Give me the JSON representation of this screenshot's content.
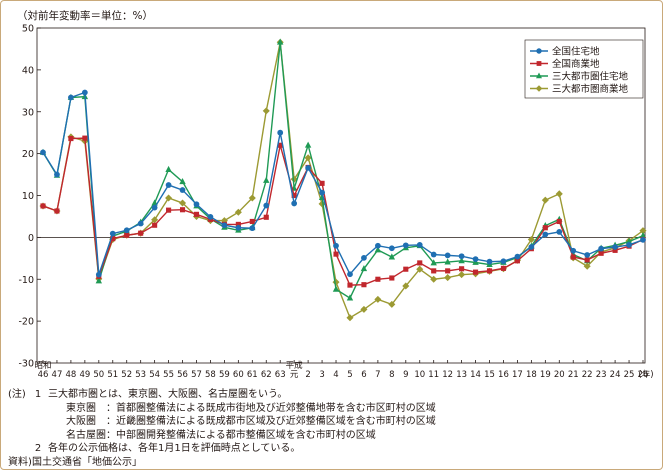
{
  "unit_label": "（対前年変動率＝単位：%）",
  "chart_data": {
    "type": "line",
    "x": [
      "昭和46",
      "47",
      "48",
      "49",
      "50",
      "51",
      "52",
      "53",
      "54",
      "55",
      "56",
      "57",
      "58",
      "59",
      "60",
      "61",
      "62",
      "63",
      "平成元",
      "2",
      "3",
      "4",
      "5",
      "6",
      "7",
      "8",
      "9",
      "10",
      "11",
      "12",
      "13",
      "14",
      "15",
      "16",
      "17",
      "18",
      "19",
      "20",
      "21",
      "22",
      "23",
      "24",
      "25",
      "26"
    ],
    "x_tick_labels": [
      "46",
      "47",
      "48",
      "49",
      "50",
      "51",
      "52",
      "53",
      "54",
      "55",
      "56",
      "57",
      "58",
      "59",
      "60",
      "61",
      "62",
      "63",
      "元",
      "2",
      "3",
      "4",
      "5",
      "6",
      "7",
      "8",
      "9",
      "10",
      "11",
      "12",
      "13",
      "14",
      "15",
      "16",
      "17",
      "18",
      "19",
      "20",
      "21",
      "22",
      "23",
      "24",
      "25",
      "26"
    ],
    "era_labels": [
      {
        "index": 0,
        "text": "昭和"
      },
      {
        "index": 18,
        "text": "平成"
      }
    ],
    "x_unit": "(年)",
    "ylim": [
      -30,
      50
    ],
    "yticks": [
      -30,
      -20,
      -10,
      0,
      10,
      20,
      30,
      40,
      50
    ],
    "grid": false,
    "legend_position": "top-right",
    "series": [
      {
        "name": "全国住宅地",
        "color": "#1f6fb2",
        "marker": "circle",
        "values": [
          20.3,
          15.0,
          33.4,
          34.6,
          -8.9,
          0.9,
          1.7,
          3.3,
          7.1,
          12.5,
          11.3,
          7.9,
          4.9,
          2.9,
          2.3,
          2.2,
          7.6,
          25.0,
          8.1,
          16.6,
          10.7,
          -2.0,
          -8.8,
          -4.9,
          -2.0,
          -2.6,
          -1.9,
          -1.8,
          -4.1,
          -4.3,
          -4.5,
          -5.2,
          -5.8,
          -5.7,
          -4.6,
          -2.3,
          0.7,
          1.3,
          -3.2,
          -4.2,
          -2.7,
          -2.3,
          -1.8,
          -0.6
        ]
      },
      {
        "name": "全国商業地",
        "color": "#c1272d",
        "marker": "square",
        "values": [
          7.5,
          6.3,
          23.6,
          23.7,
          -9.3,
          -0.3,
          0.5,
          1.0,
          2.9,
          6.5,
          6.6,
          5.5,
          4.3,
          3.1,
          3.1,
          3.8,
          4.8,
          22.0,
          10.0,
          16.7,
          12.9,
          -4.0,
          -11.4,
          -11.3,
          -10.0,
          -9.7,
          -7.6,
          -6.1,
          -8.0,
          -8.0,
          -7.5,
          -8.3,
          -8.0,
          -7.4,
          -5.6,
          -2.7,
          2.3,
          3.8,
          -4.7,
          -5.4,
          -3.8,
          -3.1,
          -2.1,
          -0.5
        ]
      },
      {
        "name": "三大都市圏住宅地",
        "color": "#1f9a55",
        "marker": "triangle",
        "values": [
          20.3,
          14.8,
          33.4,
          33.6,
          -10.4,
          0.3,
          1.5,
          3.6,
          8.2,
          16.2,
          13.3,
          7.5,
          4.4,
          2.4,
          1.7,
          2.3,
          13.6,
          46.6,
          11.7,
          22.0,
          9.5,
          -12.4,
          -14.5,
          -7.5,
          -3.0,
          -4.7,
          -2.5,
          -2.0,
          -6.1,
          -5.9,
          -5.6,
          -6.0,
          -6.5,
          -6.0,
          -4.8,
          -2.1,
          2.8,
          4.3,
          -4.1,
          -5.6,
          -2.6,
          -1.9,
          -1.0,
          0.4
        ]
      },
      {
        "name": "三大都市圏商業地",
        "color": "#9c9a33",
        "marker": "diamond",
        "values": [
          7.5,
          6.3,
          24.0,
          23.0,
          -9.9,
          -0.5,
          0.5,
          1.0,
          4.2,
          9.4,
          8.2,
          5.0,
          4.0,
          4.0,
          6.0,
          9.4,
          30.2,
          46.6,
          13.9,
          19.0,
          8.0,
          -10.7,
          -19.2,
          -17.2,
          -14.8,
          -16.0,
          -11.6,
          -7.6,
          -10.0,
          -9.6,
          -8.9,
          -8.7,
          -8.1,
          -7.5,
          -5.5,
          -0.5,
          8.9,
          10.4,
          -4.9,
          -6.9,
          -3.5,
          -2.5,
          -0.8,
          1.6
        ]
      }
    ]
  },
  "notes": [
    {
      "mark": "(注)",
      "num": "1",
      "text": "三大都市圏とは、東京圏、大阪圏、名古屋圏をいう。"
    },
    {
      "mark": "",
      "num": "",
      "text": "東京圏　：首都圏整備法による既成市街地及び近郊整備地帯を含む市区町村の区域"
    },
    {
      "mark": "",
      "num": "",
      "text": "大阪圏　：近畿圏整備法による既成都市区域及び近郊整備区域を含む市町村の区域"
    },
    {
      "mark": "",
      "num": "",
      "text": "名古屋圏：中部圏開発整備法による都市整備区域を含む市町村の区域"
    },
    {
      "mark": "",
      "num": "2",
      "text": "各年の公示価格は、各年1月1日を評価時点としている。"
    },
    {
      "mark": "資料)",
      "num": "",
      "text": "国土交通省「地価公示」"
    }
  ]
}
